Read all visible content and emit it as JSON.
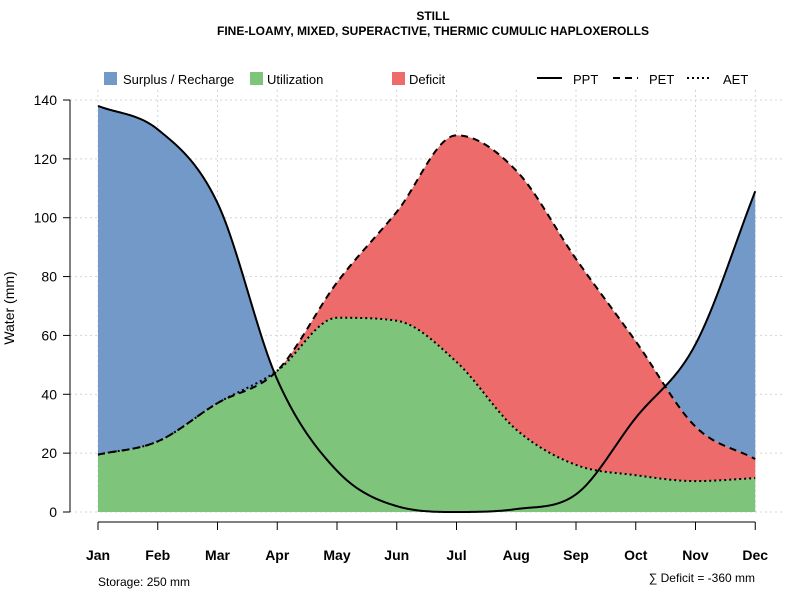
{
  "chart_data": {
    "type": "area",
    "title": "STILL",
    "subtitle": "FINE-LOAMY, MIXED, SUPERACTIVE, THERMIC CUMULIC HAPLOXEROLLS",
    "ylabel": "Water (mm)",
    "xlabel": "",
    "ylim": [
      0,
      140
    ],
    "yticks": [
      0,
      20,
      40,
      60,
      80,
      100,
      120,
      140
    ],
    "categories": [
      "Jan",
      "Feb",
      "Mar",
      "Apr",
      "May",
      "Jun",
      "Jul",
      "Aug",
      "Sep",
      "Oct",
      "Nov",
      "Dec"
    ],
    "series": [
      {
        "name": "PPT",
        "style": "solid",
        "values": [
          138,
          130,
          105,
          45,
          14,
          2,
          0,
          1,
          6,
          32,
          57,
          109
        ]
      },
      {
        "name": "PET",
        "style": "dashed",
        "values": [
          19.5,
          24,
          37,
          48,
          78,
          102,
          128,
          116,
          86,
          58,
          29,
          18
        ]
      },
      {
        "name": "AET",
        "style": "dotted",
        "values": [
          19.5,
          24,
          37,
          48,
          66,
          65,
          51,
          28,
          16,
          12.5,
          10.5,
          11.5
        ]
      }
    ],
    "areas": [
      {
        "name": "Surplus / Recharge",
        "color": "#7399c8"
      },
      {
        "name": "Utilization",
        "color": "#7ec47a"
      },
      {
        "name": "Deficit",
        "color": "#ed6b6b"
      }
    ],
    "legend": [
      "Surplus / Recharge",
      "Utilization",
      "Deficit",
      "PPT",
      "PET",
      "AET"
    ],
    "grid": true,
    "annotations": {
      "storage": "Storage: 250 mm",
      "deficit": "∑ Deficit = -360 mm"
    }
  }
}
